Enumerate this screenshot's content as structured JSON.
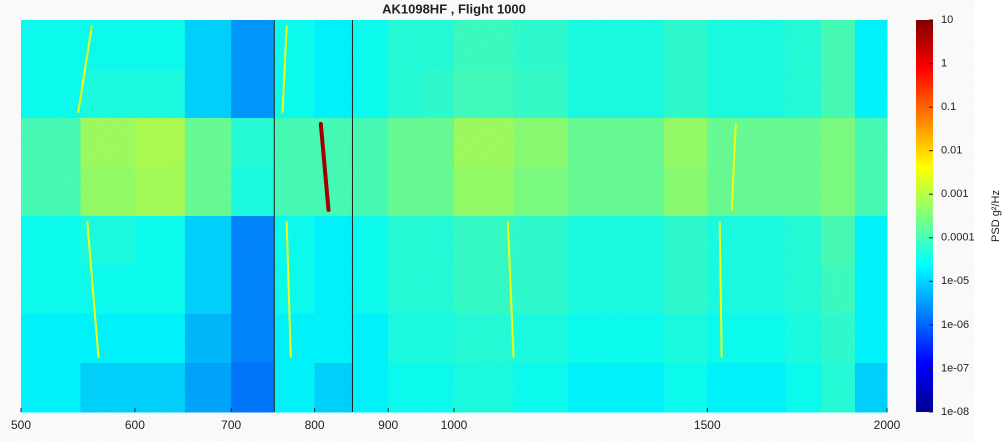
{
  "chart_data": {
    "type": "heatmap",
    "title": "AK1098HF , Flight 1000",
    "xscale": "log",
    "xlim": [
      500,
      2000
    ],
    "xticks": [
      500,
      600,
      700,
      800,
      900,
      1000,
      1500,
      2000
    ],
    "xbins": [
      500,
      550,
      600,
      650,
      700,
      750,
      800,
      850,
      900,
      950,
      1000,
      1100,
      1200,
      1300,
      1400,
      1500,
      1600,
      1700,
      1800,
      1900,
      2000
    ],
    "rows": [
      [
        3e-05,
        3e-05,
        3e-05,
        1e-05,
        3e-06,
        3e-05,
        2e-05,
        3e-05,
        5e-05,
        5e-05,
        8e-05,
        6e-05,
        4e-05,
        4e-05,
        6e-05,
        4e-05,
        4e-05,
        5e-05,
        0.0001,
        2e-05
      ],
      [
        3e-05,
        4e-05,
        4e-05,
        1e-05,
        3e-06,
        3e-05,
        2e-05,
        3e-05,
        5e-05,
        6e-05,
        9e-05,
        7e-05,
        4e-05,
        4e-05,
        6e-05,
        4e-05,
        4e-05,
        5e-05,
        0.0001,
        2e-05
      ],
      [
        0.0001,
        0.0006,
        0.0008,
        0.0002,
        5e-05,
        0.0001,
        0.0001,
        0.0001,
        0.0002,
        0.0002,
        0.0006,
        0.0004,
        0.0002,
        0.0002,
        0.0005,
        0.0002,
        0.0002,
        0.0002,
        0.0003,
        0.0001
      ],
      [
        0.0001,
        0.0005,
        0.0007,
        0.0002,
        4e-05,
        0.0001,
        0.0001,
        0.0001,
        0.0002,
        0.0002,
        0.0005,
        0.0003,
        0.0002,
        0.0002,
        0.0004,
        0.0002,
        0.0002,
        0.0002,
        0.0003,
        0.0001
      ],
      [
        3e-05,
        4e-05,
        3e-05,
        1e-05,
        2e-06,
        3e-05,
        2e-05,
        3e-05,
        5e-05,
        5e-05,
        7e-05,
        6e-05,
        4e-05,
        4e-05,
        6e-05,
        4e-05,
        4e-05,
        5e-05,
        0.0001,
        2e-05
      ],
      [
        3e-05,
        3e-05,
        3e-05,
        1e-05,
        2e-06,
        3e-05,
        2e-05,
        3e-05,
        5e-05,
        5e-05,
        7e-05,
        6e-05,
        4e-05,
        4e-05,
        6e-05,
        4e-05,
        4e-05,
        5e-05,
        8e-05,
        2e-05
      ],
      [
        2e-05,
        2e-05,
        2e-05,
        6e-06,
        2e-06,
        2e-05,
        2e-05,
        2e-05,
        4e-05,
        4e-05,
        5e-05,
        4e-05,
        3e-05,
        3e-05,
        4e-05,
        3e-05,
        3e-05,
        4e-05,
        6e-05,
        2e-05
      ],
      [
        2e-05,
        1e-05,
        1e-05,
        4e-06,
        1.5e-06,
        2e-05,
        1e-05,
        2e-05,
        3e-05,
        3e-05,
        4e-05,
        3e-05,
        2e-05,
        2e-05,
        3e-05,
        2e-05,
        2e-05,
        3e-05,
        5e-05,
        1e-05
      ]
    ],
    "tracks": [
      {
        "x": [
          808,
          818
        ],
        "rows": [
          2,
          3
        ],
        "value": 5
      },
      {
        "x": [
          560,
          548
        ],
        "rows": [
          0,
          1
        ],
        "value": 0.003
      },
      {
        "x": [
          556,
          566
        ],
        "rows": [
          4,
          6
        ],
        "value": 0.003
      },
      {
        "x": [
          765,
          760
        ],
        "rows": [
          0,
          1
        ],
        "value": 0.003
      },
      {
        "x": [
          765,
          770
        ],
        "rows": [
          4,
          6
        ],
        "value": 0.003
      },
      {
        "x": [
          1090,
          1100
        ],
        "rows": [
          4,
          6
        ],
        "value": 0.003
      },
      {
        "x": [
          1570,
          1560
        ],
        "rows": [
          2,
          3
        ],
        "value": 0.003
      },
      {
        "x": [
          1530,
          1535
        ],
        "rows": [
          4,
          6
        ],
        "value": 0.003
      }
    ],
    "markers": [
      750,
      850
    ],
    "colorscale": "jet",
    "clim": [
      1e-08,
      10
    ],
    "cticks": [
      {
        "value": 1e-08,
        "label": "1e-08"
      },
      {
        "value": 1e-07,
        "label": "1e-07"
      },
      {
        "value": 1e-06,
        "label": "1e-06"
      },
      {
        "value": 1e-05,
        "label": "1e-05"
      },
      0.0001,
      0.001,
      0.01,
      0.1,
      1,
      10
    ],
    "colorbar_label": "PSD g²/Hz"
  }
}
